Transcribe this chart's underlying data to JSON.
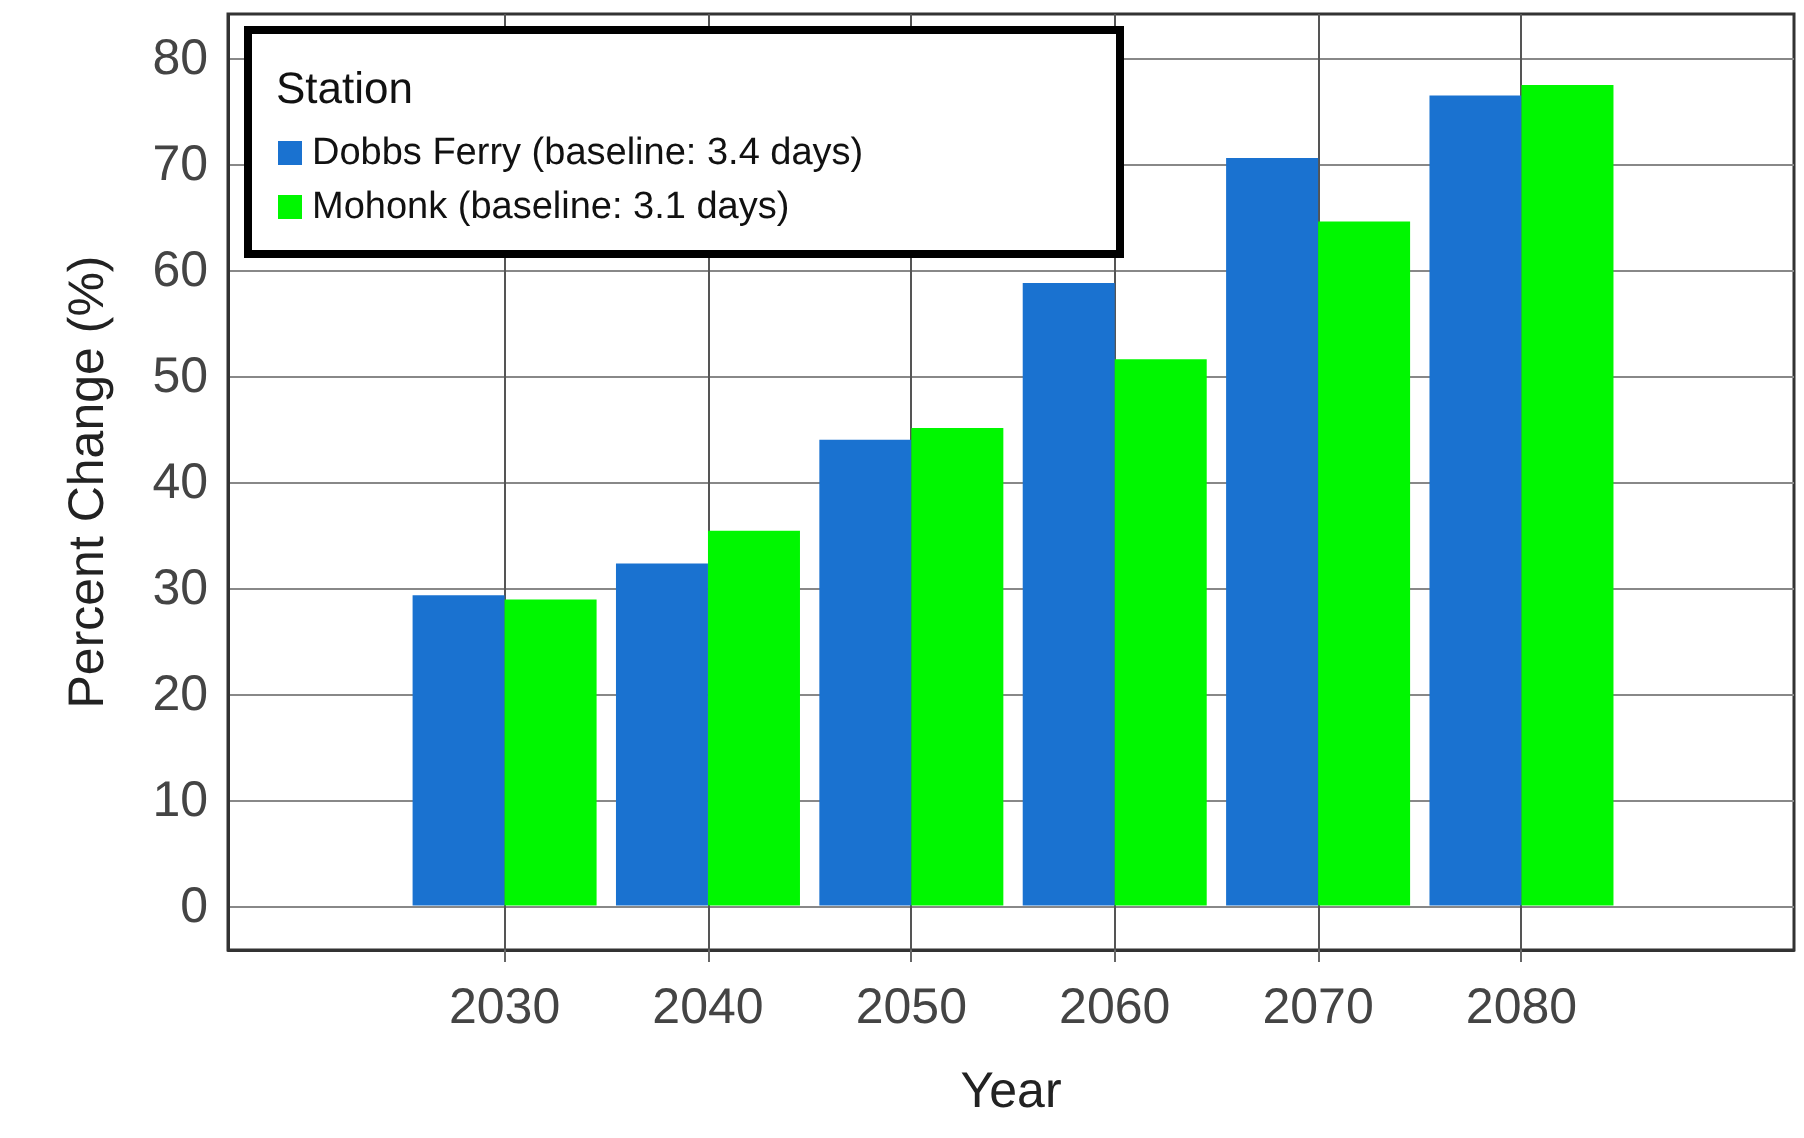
{
  "chart_data": {
    "type": "bar",
    "xlabel": "Year",
    "ylabel": "Percent Change (%)",
    "legend_title": "Station",
    "x": [
      2030,
      2040,
      2050,
      2060,
      2070,
      2080
    ],
    "series": [
      {
        "name": "Dobbs Ferry (baseline: 3.4 days)",
        "color": "#1a72d0",
        "values": [
          29.3,
          32.3,
          44.0,
          58.8,
          70.6,
          76.5
        ]
      },
      {
        "name": "Mohonk (baseline: 3.1 days)",
        "color": "#00f700",
        "values": [
          28.9,
          35.4,
          45.1,
          51.6,
          64.6,
          77.5
        ]
      }
    ],
    "xlim": [
      2016.4,
      2093.4
    ],
    "xticks": [
      2030,
      2040,
      2050,
      2060,
      2070,
      2080
    ],
    "ylim": [
      -4.2,
      84.2
    ],
    "yticks": [
      0,
      10,
      20,
      30,
      40,
      50,
      60,
      70,
      80
    ],
    "grid": true,
    "legend": "top left"
  }
}
